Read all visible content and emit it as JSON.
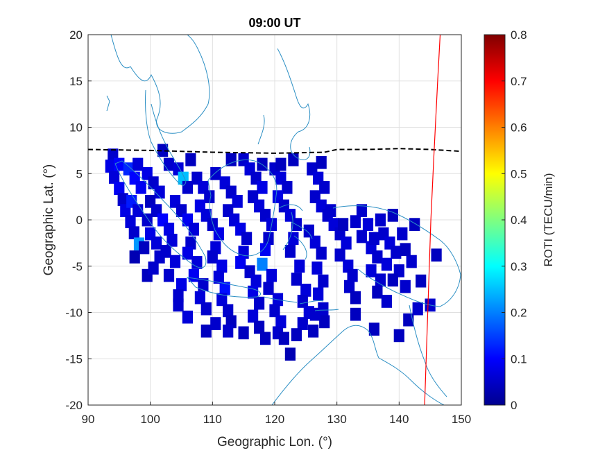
{
  "chart_data": {
    "type": "heatmap",
    "title": "09:00 UT",
    "xlabel": "Geographic Lon. (°)",
    "ylabel": "Geographic Lat. (°)",
    "xlim": [
      90,
      150
    ],
    "ylim": [
      -20,
      20
    ],
    "xticks": [
      "90",
      "100",
      "110",
      "120",
      "130",
      "140",
      "150"
    ],
    "yticks": [
      "20",
      "15",
      "10",
      "5",
      "0",
      "-5",
      "-10",
      "-15",
      "-20"
    ],
    "grid": true,
    "colorbar": {
      "label": "ROTI (TECU/min)",
      "range": [
        0,
        0.8
      ],
      "ticks": [
        "0.8",
        "0.7",
        "0.6",
        "0.5",
        "0.4",
        "0.3",
        "0.2",
        "0.1",
        "0"
      ],
      "colormap": "jet"
    },
    "cell_size_deg": [
      1.7,
      1.4
    ],
    "roti_cells": [
      [
        94,
        7,
        0.06
      ],
      [
        93.6,
        5.8,
        0.08
      ],
      [
        94.2,
        4.6,
        0.07
      ],
      [
        95,
        3.4,
        0.09
      ],
      [
        95.6,
        2.2,
        0.06
      ],
      [
        96,
        1,
        0.08
      ],
      [
        96.8,
        -0.2,
        0.07
      ],
      [
        97.4,
        -1.4,
        0.06
      ],
      [
        98.2,
        -2.6,
        0.22
      ],
      [
        95,
        6,
        0.1
      ],
      [
        96.5,
        5.5,
        0.13
      ],
      [
        97.5,
        4.5,
        0.1
      ],
      [
        98.5,
        3.5,
        0.09
      ],
      [
        97,
        2,
        0.12
      ],
      [
        98,
        1,
        0.07
      ],
      [
        99.5,
        0,
        0.06
      ],
      [
        100,
        -1.5,
        0.08
      ],
      [
        101,
        -2.5,
        0.07
      ],
      [
        101.5,
        -4,
        0.06
      ],
      [
        99.5,
        -6,
        0.05
      ],
      [
        97.5,
        -4,
        0.04
      ],
      [
        98,
        6,
        0.07
      ],
      [
        99.5,
        5,
        0.08
      ],
      [
        100.5,
        4,
        0.06
      ],
      [
        101.5,
        3,
        0.07
      ],
      [
        100,
        2,
        0.05
      ],
      [
        101,
        1,
        0.06
      ],
      [
        102,
        0,
        0.1
      ],
      [
        103,
        -1,
        0.08
      ],
      [
        103.5,
        -2.2,
        0.07
      ],
      [
        102.5,
        -3.4,
        0.06
      ],
      [
        104,
        -4.5,
        0.07
      ],
      [
        103,
        -6,
        0.06
      ],
      [
        105,
        -7,
        0.08
      ],
      [
        104.5,
        -8.2,
        0.06
      ],
      [
        102,
        7.5,
        0.05
      ],
      [
        103,
        6,
        0.06
      ],
      [
        104.5,
        5.5,
        0.07
      ],
      [
        105.3,
        4.5,
        0.25
      ],
      [
        106,
        3.5,
        0.06
      ],
      [
        104,
        2,
        0.07
      ],
      [
        105,
        1,
        0.06
      ],
      [
        106,
        0,
        0.09
      ],
      [
        107,
        -1,
        0.07
      ],
      [
        106.5,
        -2.5,
        0.06
      ],
      [
        106,
        -3.6,
        0.08
      ],
      [
        107.5,
        -4.6,
        0.07
      ],
      [
        107,
        -6,
        0.09
      ],
      [
        108.5,
        -7,
        0.06
      ],
      [
        108,
        -8.4,
        0.07
      ],
      [
        109,
        -9.6,
        0.06
      ],
      [
        106.5,
        6.5,
        0.05
      ],
      [
        107.5,
        4.5,
        0.06
      ],
      [
        108.5,
        3.5,
        0.07
      ],
      [
        109.5,
        2.5,
        0.06
      ],
      [
        108,
        1.5,
        0.08
      ],
      [
        109,
        0.5,
        0.07
      ],
      [
        110,
        -0.5,
        0.06
      ],
      [
        111,
        -1.5,
        0.08
      ],
      [
        110.5,
        -3,
        0.07
      ],
      [
        110,
        -4,
        0.06
      ],
      [
        111.5,
        -5,
        0.08
      ],
      [
        111,
        -6.2,
        0.07
      ],
      [
        112,
        -7.4,
        0.11
      ],
      [
        111.5,
        -8.6,
        0.07
      ],
      [
        112.5,
        -9.8,
        0.06
      ],
      [
        113,
        -11,
        0.05
      ],
      [
        110.5,
        5,
        0.06
      ],
      [
        112,
        4,
        0.07
      ],
      [
        113,
        3,
        0.06
      ],
      [
        114,
        2,
        0.07
      ],
      [
        112.5,
        1,
        0.06
      ],
      [
        113.5,
        0,
        0.07
      ],
      [
        114.5,
        -1,
        0.08
      ],
      [
        115.5,
        -2,
        0.06
      ],
      [
        115,
        -3.5,
        0.07
      ],
      [
        114.5,
        -4.6,
        0.09
      ],
      [
        116,
        -5.6,
        0.06
      ],
      [
        117,
        -6.6,
        0.07
      ],
      [
        116.5,
        -7.8,
        0.08
      ],
      [
        117.5,
        -9,
        0.06
      ],
      [
        116.5,
        -10.4,
        0.07
      ],
      [
        117.5,
        -11.6,
        0.05
      ],
      [
        115,
        6.5,
        0.06
      ],
      [
        116,
        5.5,
        0.07
      ],
      [
        117,
        4.5,
        0.06
      ],
      [
        118,
        3.5,
        0.08
      ],
      [
        116.5,
        2.5,
        0.06
      ],
      [
        117.5,
        1.5,
        0.07
      ],
      [
        118.5,
        0.5,
        0.06
      ],
      [
        119.5,
        -0.5,
        0.07
      ],
      [
        119,
        -2,
        0.06
      ],
      [
        118.5,
        -3.2,
        0.09
      ],
      [
        118,
        -4.8,
        0.2
      ],
      [
        119.5,
        -6,
        0.07
      ],
      [
        119,
        -7.4,
        0.06
      ],
      [
        120.5,
        -8.6,
        0.07
      ],
      [
        120,
        -9.8,
        0.06
      ],
      [
        121,
        -11,
        0.07
      ],
      [
        120.5,
        -12.2,
        0.06
      ],
      [
        118,
        6,
        0.05
      ],
      [
        120,
        5.5,
        0.06
      ],
      [
        121,
        4.5,
        0.07
      ],
      [
        122,
        3.5,
        0.06
      ],
      [
        120.5,
        2.5,
        0.08
      ],
      [
        121.5,
        1.5,
        0.06
      ],
      [
        122.5,
        0.5,
        0.07
      ],
      [
        123.5,
        -0.5,
        0.06
      ],
      [
        123,
        -2,
        0.07
      ],
      [
        122.5,
        -3.4,
        0.06
      ],
      [
        124,
        -5,
        0.07
      ],
      [
        123.5,
        -6.4,
        0.06
      ],
      [
        125,
        -7.6,
        0.07
      ],
      [
        124.5,
        -8.8,
        0.06
      ],
      [
        125.5,
        -10,
        0.07
      ],
      [
        124.5,
        -11.2,
        0.06
      ],
      [
        123.5,
        -12.4,
        0.05
      ],
      [
        122.5,
        -14.5,
        0.04
      ],
      [
        113,
        6.5,
        0.05
      ],
      [
        121,
        6,
        0.05
      ],
      [
        123,
        6.5,
        0.05
      ],
      [
        126,
        5.5,
        0.06
      ],
      [
        127,
        4.5,
        0.07
      ],
      [
        128,
        3.5,
        0.06
      ],
      [
        126.5,
        2.5,
        0.06
      ],
      [
        127.5,
        1.5,
        0.07
      ],
      [
        128.5,
        0.5,
        0.06
      ],
      [
        125.5,
        -1.2,
        0.06
      ],
      [
        126.5,
        -2.4,
        0.07
      ],
      [
        127.5,
        -3.6,
        0.06
      ],
      [
        126.8,
        -5.2,
        0.07
      ],
      [
        127.8,
        -6.6,
        0.06
      ],
      [
        127,
        -8,
        0.07
      ],
      [
        127.8,
        -9.6,
        0.06
      ],
      [
        128,
        -11,
        0.05
      ],
      [
        126.2,
        -12,
        0.05
      ],
      [
        127.5,
        6.2,
        0.05
      ],
      [
        129,
        1,
        0.06
      ],
      [
        129.5,
        -0.5,
        0.07
      ],
      [
        130.5,
        -1.5,
        0.06
      ],
      [
        131.5,
        -2.5,
        0.07
      ],
      [
        130.5,
        -3.8,
        0.06
      ],
      [
        131.8,
        -5,
        0.07
      ],
      [
        132.5,
        -6,
        0.06
      ],
      [
        132,
        -7.2,
        0.06
      ],
      [
        133,
        -8.4,
        0.05
      ],
      [
        131,
        -0.5,
        0.05
      ],
      [
        133,
        -0.2,
        0.06
      ],
      [
        134,
        1,
        0.06
      ],
      [
        135,
        -0.5,
        0.07
      ],
      [
        134,
        -1.8,
        0.06
      ],
      [
        135.5,
        -3,
        0.07
      ],
      [
        136.5,
        -4,
        0.06
      ],
      [
        135.5,
        -5.5,
        0.07
      ],
      [
        137,
        -6.5,
        0.06
      ],
      [
        136.5,
        -7.8,
        0.05
      ],
      [
        138,
        -8.8,
        0.06
      ],
      [
        136,
        -2,
        0.06
      ],
      [
        137.5,
        -1.5,
        0.06
      ],
      [
        138.5,
        -2.5,
        0.07
      ],
      [
        139.5,
        -3.5,
        0.06
      ],
      [
        138,
        -4.8,
        0.07
      ],
      [
        140,
        -5.5,
        0.06
      ],
      [
        139,
        -6.5,
        0.05
      ],
      [
        141,
        -7.2,
        0.06
      ],
      [
        142,
        -4.5,
        0.06
      ],
      [
        141,
        -3.2,
        0.05
      ],
      [
        140.5,
        -1.5,
        0.06
      ],
      [
        142.5,
        -0.5,
        0.05
      ],
      [
        137,
        0,
        0.06
      ],
      [
        139,
        0.5,
        0.05
      ],
      [
        141.5,
        -10.8,
        0.05
      ],
      [
        143,
        -9.6,
        0.06
      ],
      [
        145,
        -9.2,
        0.06
      ],
      [
        146,
        -3.8,
        0.05
      ],
      [
        143.5,
        -6.6,
        0.05
      ],
      [
        136,
        -11.8,
        0.05
      ],
      [
        140,
        -12.5,
        0.05
      ],
      [
        133,
        -10.2,
        0.05
      ],
      [
        126.5,
        -10.2,
        0.06
      ],
      [
        112.5,
        -12,
        0.06
      ],
      [
        109,
        -12,
        0.05
      ],
      [
        106,
        -10.5,
        0.07
      ],
      [
        104.5,
        -9.2,
        0.06
      ],
      [
        100.5,
        -5.2,
        0.06
      ],
      [
        99,
        -3,
        0.05
      ],
      [
        115,
        -12.2,
        0.05
      ],
      [
        118.5,
        -12.8,
        0.05
      ],
      [
        121.5,
        -12.8,
        0.05
      ],
      [
        110.5,
        -11.2,
        0.06
      ]
    ]
  }
}
